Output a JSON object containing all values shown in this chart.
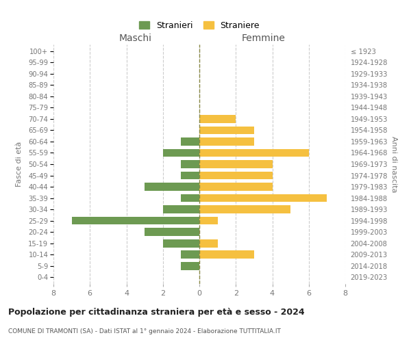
{
  "age_groups": [
    "0-4",
    "5-9",
    "10-14",
    "15-19",
    "20-24",
    "25-29",
    "30-34",
    "35-39",
    "40-44",
    "45-49",
    "50-54",
    "55-59",
    "60-64",
    "65-69",
    "70-74",
    "75-79",
    "80-84",
    "85-89",
    "90-94",
    "95-99",
    "100+"
  ],
  "birth_years": [
    "2019-2023",
    "2014-2018",
    "2009-2013",
    "2004-2008",
    "1999-2003",
    "1994-1998",
    "1989-1993",
    "1984-1988",
    "1979-1983",
    "1974-1978",
    "1969-1973",
    "1964-1968",
    "1959-1963",
    "1954-1958",
    "1949-1953",
    "1944-1948",
    "1939-1943",
    "1934-1938",
    "1929-1933",
    "1924-1928",
    "≤ 1923"
  ],
  "maschi": [
    0,
    1,
    1,
    2,
    3,
    7,
    2,
    1,
    3,
    1,
    1,
    2,
    1,
    0,
    0,
    0,
    0,
    0,
    0,
    0,
    0
  ],
  "femmine": [
    0,
    0,
    3,
    1,
    0,
    1,
    5,
    7,
    4,
    4,
    4,
    6,
    3,
    3,
    2,
    0,
    0,
    0,
    0,
    0,
    0
  ],
  "maschi_color": "#6d9a52",
  "femmine_color": "#f5c040",
  "title": "Popolazione per cittadinanza straniera per età e sesso - 2024",
  "subtitle": "COMUNE DI TRAMONTI (SA) - Dati ISTAT al 1° gennaio 2024 - Elaborazione TUTTITALIA.IT",
  "left_label": "Maschi",
  "right_label": "Femmine",
  "ylabel_left": "Fasce di età",
  "ylabel_right": "Anni di nascita",
  "legend_maschi": "Stranieri",
  "legend_femmine": "Straniere",
  "xlim": 8,
  "background_color": "#ffffff",
  "grid_color": "#cccccc"
}
